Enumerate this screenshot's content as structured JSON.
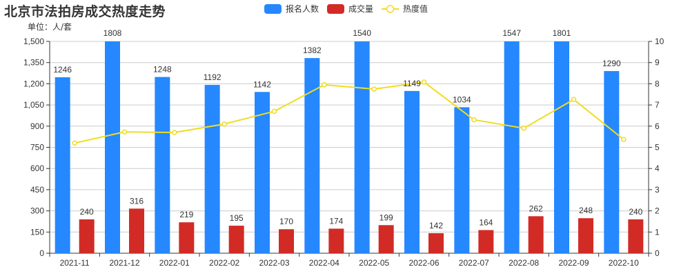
{
  "title": "北京市法拍房成交热度走势",
  "unit_label": "单位：人/套",
  "legend": [
    {
      "name": "报名人数",
      "color": "#2588FF",
      "type": "bar"
    },
    {
      "name": "成交量",
      "color": "#D22B26",
      "type": "bar"
    },
    {
      "name": "热度值",
      "color": "#F1DC21",
      "type": "line"
    }
  ],
  "chart_data": {
    "type": "bar",
    "title": "北京市法拍房成交热度走势",
    "xlabel": "",
    "ylabel": "单位：人/套",
    "y2label": "",
    "categories": [
      "2021-11",
      "2021-12",
      "2022-01",
      "2022-02",
      "2022-03",
      "2022-04",
      "2022-05",
      "2022-06",
      "2022-07",
      "2022-08",
      "2022-09",
      "2022-10"
    ],
    "series": [
      {
        "name": "报名人数",
        "type": "bar",
        "axis": "left",
        "color": "#2588FF",
        "values": [
          1246,
          1808,
          1248,
          1192,
          1142,
          1382,
          1540,
          1149,
          1034,
          1547,
          1801,
          1290
        ]
      },
      {
        "name": "成交量",
        "type": "bar",
        "axis": "left",
        "color": "#D22B26",
        "values": [
          240,
          316,
          219,
          195,
          170,
          174,
          199,
          142,
          164,
          262,
          248,
          240
        ]
      },
      {
        "name": "热度值",
        "type": "line",
        "axis": "right",
        "color": "#F1DC21",
        "values": [
          5.2,
          5.73,
          5.7,
          6.1,
          6.7,
          7.95,
          7.75,
          8.08,
          6.3,
          5.9,
          7.26,
          5.37
        ]
      }
    ],
    "ylim": [
      0,
      1500
    ],
    "y_ticks": [
      "0",
      "150",
      "300",
      "450",
      "600",
      "750",
      "900",
      "1,050",
      "1,200",
      "1,350",
      "1,500"
    ],
    "y2lim": [
      0,
      10
    ],
    "y2_ticks": [
      "0",
      "1",
      "2",
      "3",
      "4",
      "5",
      "6",
      "7",
      "8",
      "9",
      "10"
    ],
    "grid": true,
    "legend_position": "top-center"
  }
}
